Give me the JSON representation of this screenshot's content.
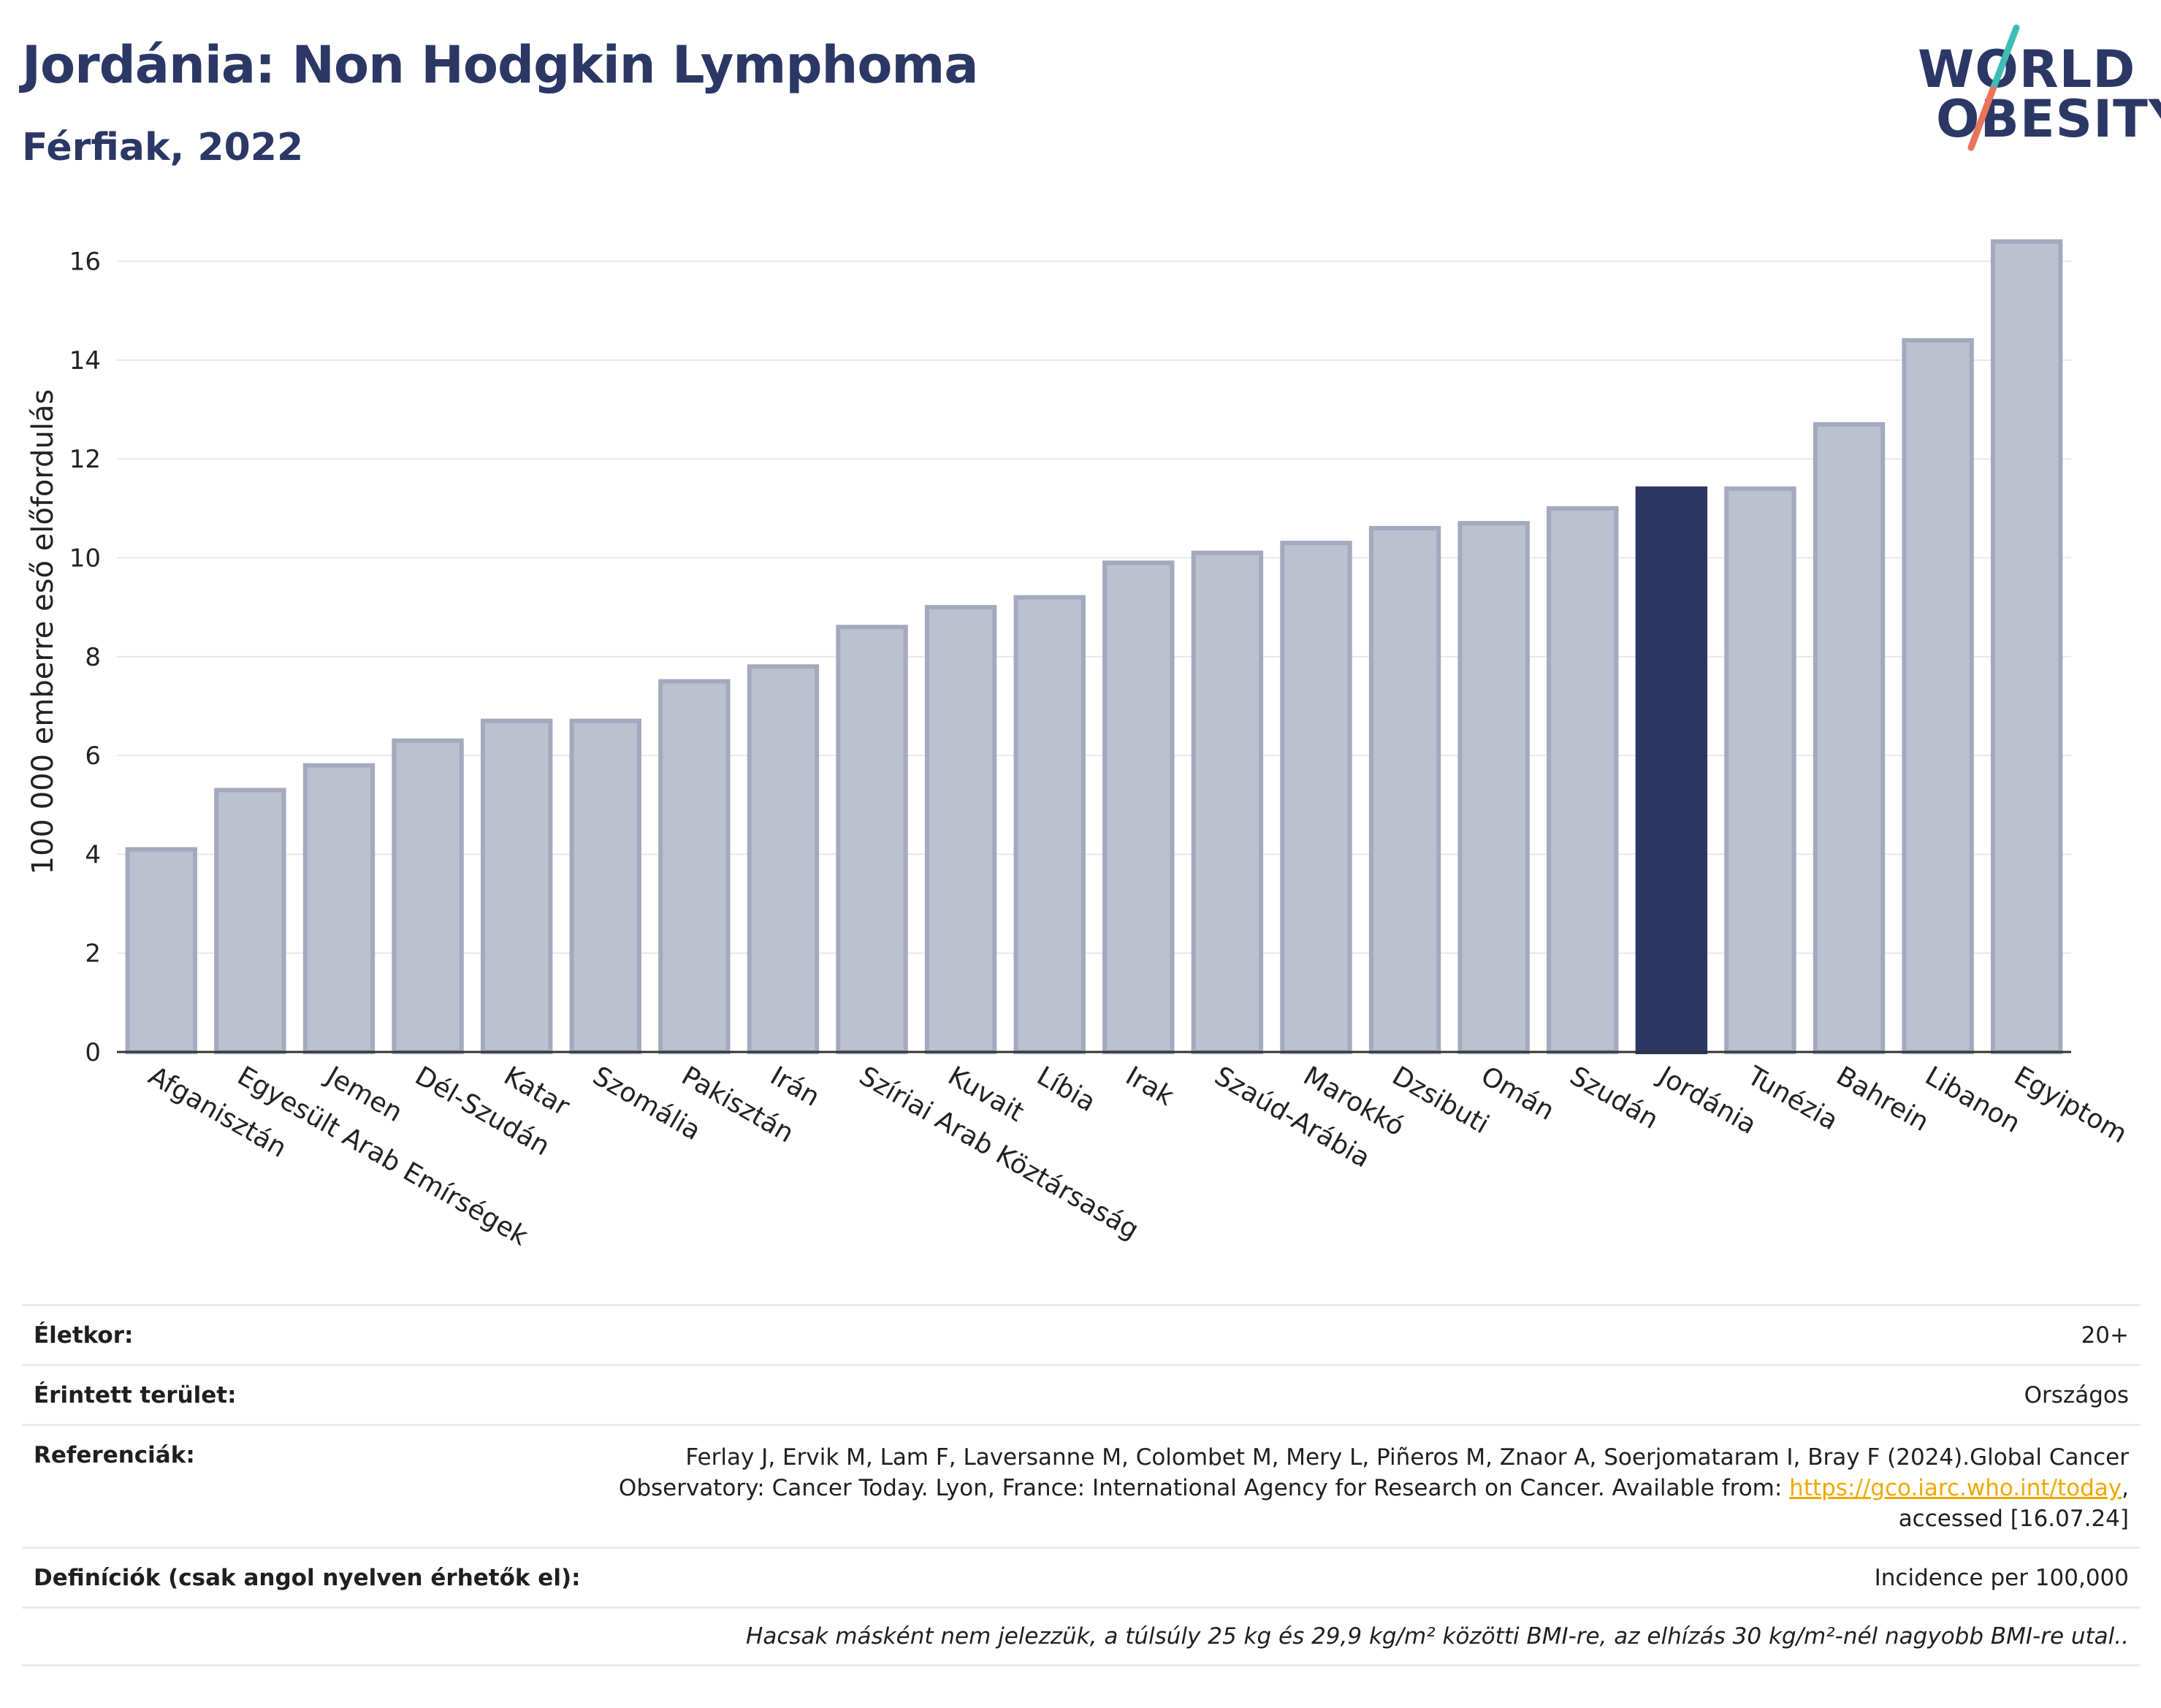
{
  "header": {
    "title": "Jordánia: Non Hodgkin Lymphoma",
    "subtitle": "Férfiak, 2022"
  },
  "logo": {
    "line1": "WORLD",
    "line2": "OBESITY",
    "colors": {
      "text": "#2b3765",
      "slash_top": "#3dbdb6",
      "slash_bottom": "#e8745a"
    }
  },
  "colors": {
    "bar": "#bcc0cf",
    "bar_stroke": "#a3a9be",
    "highlight": "#2b3765",
    "grid": "#e6e8ef"
  },
  "chart_data": {
    "type": "bar",
    "ylabel": "100 000 emberre eső előfordulás",
    "ylim": [
      0,
      17
    ],
    "yticks": [
      0,
      2,
      4,
      6,
      8,
      10,
      12,
      14,
      16
    ],
    "grid": true,
    "highlight": "Jordánia",
    "categories": [
      "Afganisztán",
      "Egyesült Arab Emírségek",
      "Jemen",
      "Dél-Szudán",
      "Katar",
      "Szomália",
      "Pakisztán",
      "Irán",
      "Szíriai Arab Köztársaság",
      "Kuvait",
      "Líbia",
      "Irak",
      "Szaúd-Arábia",
      "Marokkó",
      "Dzsibuti",
      "Omán",
      "Szudán",
      "Jordánia",
      "Tunézia",
      "Bahrein",
      "Libanon",
      "Egyiptom"
    ],
    "values": [
      4.1,
      5.3,
      5.8,
      6.3,
      6.7,
      6.7,
      7.5,
      7.8,
      8.6,
      9.0,
      9.2,
      9.9,
      10.1,
      10.3,
      10.6,
      10.7,
      11.0,
      11.4,
      11.4,
      12.7,
      14.4,
      16.4
    ]
  },
  "info": {
    "age_label": "Életkor:",
    "age_value": "20+",
    "area_label": "Érintett terület:",
    "area_value": "Országos",
    "ref_label": "Referenciák:",
    "ref_text_1": "Ferlay J, Ervik M, Lam F, Laversanne M, Colombet M, Mery L, Piñeros M, Znaor A, Soerjomataram I, Bray F (2024).Global Cancer",
    "ref_text_2": "Observatory: Cancer Today. Lyon, France: International Agency for Research on Cancer. Available from: ",
    "ref_link": "https://gco.iarc.who.int/today",
    "ref_text_3": ",",
    "ref_text_4": "accessed [16.07.24]",
    "def_label": "Definíciók (csak angol nyelven érhetők el):",
    "def_value": "Incidence per 100,000",
    "note": "Hacsak másként nem jelezzük, a túlsúly 25 kg és 29,9 kg/m² közötti BMI-re, az elhízás 30 kg/m²-nél nagyobb BMI-re utal.."
  }
}
